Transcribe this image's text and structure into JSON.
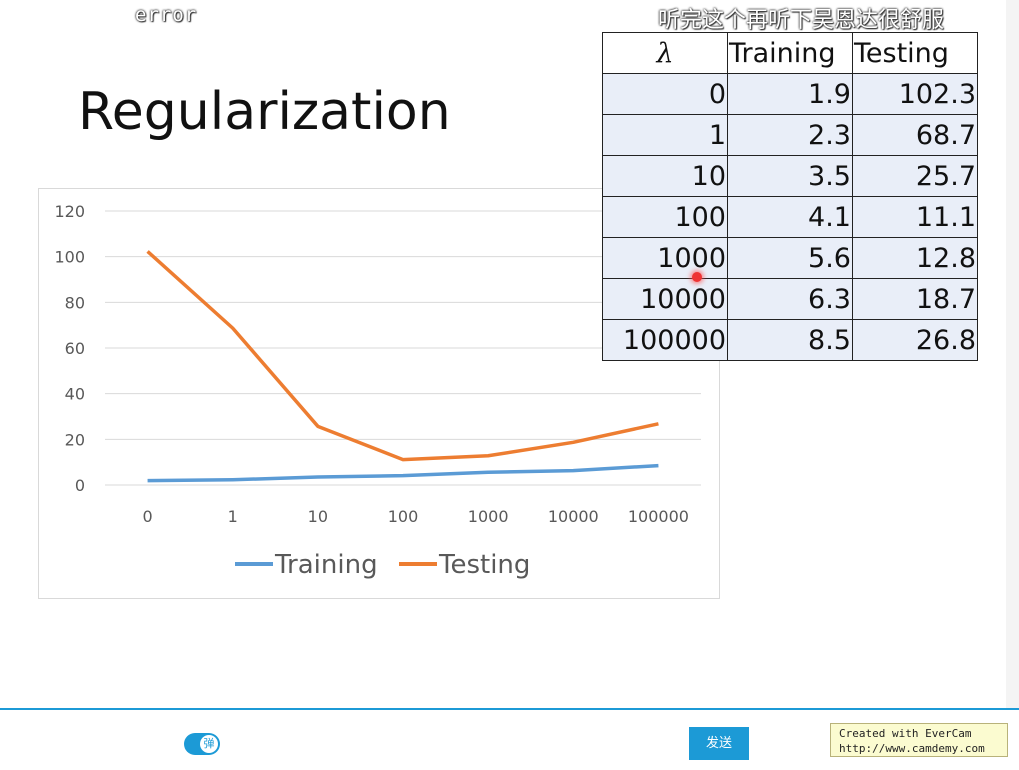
{
  "overlay": {
    "top_left": "error",
    "danmaku": "听完这个再听下吴恩达很舒服"
  },
  "slide": {
    "title": "Regularization"
  },
  "table": {
    "headers": [
      "λ",
      "Training",
      "Testing"
    ],
    "rows": [
      [
        "0",
        "1.9",
        "102.3"
      ],
      [
        "1",
        "2.3",
        "68.7"
      ],
      [
        "10",
        "3.5",
        "25.7"
      ],
      [
        "100",
        "4.1",
        "11.1"
      ],
      [
        "1000",
        "5.6",
        "12.8"
      ],
      [
        "10000",
        "6.3",
        "18.7"
      ],
      [
        "100000",
        "8.5",
        "26.8"
      ]
    ]
  },
  "chart_data": {
    "type": "line",
    "categories": [
      "0",
      "1",
      "10",
      "100",
      "1000",
      "10000",
      "100000"
    ],
    "series": [
      {
        "name": "Training",
        "color": "#5b9bd5",
        "values": [
          1.9,
          2.3,
          3.5,
          4.1,
          5.6,
          6.3,
          8.5
        ]
      },
      {
        "name": "Testing",
        "color": "#ed7d31",
        "values": [
          102.3,
          68.7,
          25.7,
          11.1,
          12.8,
          18.7,
          26.8
        ]
      }
    ],
    "y_ticks": [
      "0",
      "20",
      "40",
      "60",
      "80",
      "100",
      "120"
    ],
    "ylim": [
      0,
      120
    ],
    "grid": true,
    "legend": "bottom"
  },
  "bottom_bar": {
    "toggle_label": "弹",
    "send_label": "发送",
    "watermark_line1": "Created with EverCam",
    "watermark_line2": "http://www.camdemy.com"
  }
}
